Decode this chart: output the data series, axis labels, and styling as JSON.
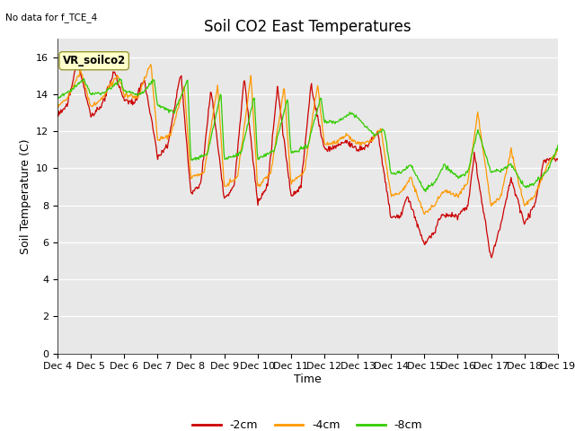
{
  "title": "Soil CO2 East Temperatures",
  "subtitle": "No data for f_TCE_4",
  "ylabel": "Soil Temperature (C)",
  "xlabel": "Time",
  "annotation": "VR_soilco2",
  "ylim": [
    0,
    17
  ],
  "yticks": [
    0,
    2,
    4,
    6,
    8,
    10,
    12,
    14,
    16
  ],
  "xtick_labels": [
    "Dec 4",
    "Dec 5",
    "Dec 6",
    "Dec 7",
    "Dec 8",
    "Dec 9",
    "Dec 10",
    "Dec 11",
    "Dec 12",
    "Dec 13",
    "Dec 14",
    "Dec 15",
    "Dec 16",
    "Dec 17",
    "Dec 18",
    "Dec 19"
  ],
  "colors": {
    "minus2cm": "#cc0000",
    "minus4cm": "#ff9900",
    "minus8cm": "#33cc00"
  },
  "background_color": "#e8e8e8",
  "plot_bg": "#dcdcdc",
  "legend_labels": [
    "-2cm",
    "-4cm",
    "-8cm"
  ],
  "title_fontsize": 12,
  "axis_fontsize": 9,
  "tick_fontsize": 8
}
